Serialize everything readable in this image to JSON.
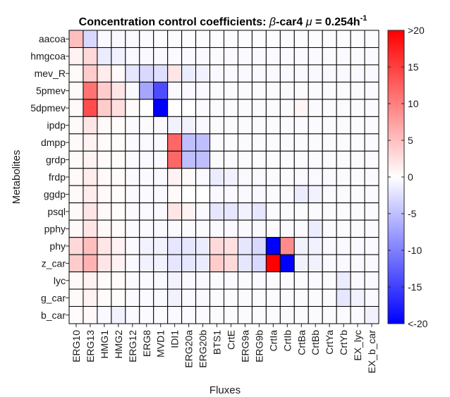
{
  "chart_data": {
    "type": "heatmap",
    "title": {
      "prefix": "Concentration control coefficients: ",
      "beta": "β",
      "mid": "-car4 ",
      "mu": "μ",
      "value": " = 0.254h",
      "exponent": "-1"
    },
    "xlabel": "Fluxes",
    "ylabel": "Metabolites",
    "x": [
      "ERG10",
      "ERG13",
      "HMG1",
      "HMG2",
      "ERG12",
      "ERG8",
      "MVD1",
      "IDI1",
      "ERG20a",
      "ERG20b",
      "BTS1",
      "CrtE",
      "ERG9a",
      "ERG9b",
      "CrtIa",
      "CrtIb",
      "CrtBa",
      "CrtBb",
      "CrtYa",
      "CrtYb",
      "EX_lyc",
      "EX_b_car"
    ],
    "y": [
      "aacoa",
      "hmgcoa",
      "mev_R",
      "5pmev",
      "5dpmev",
      "ipdp",
      "dmpp",
      "grdp",
      "frdp",
      "ggdp",
      "psql",
      "pphy",
      "phy",
      "z_car",
      "lyc",
      "g_car",
      "b_car"
    ],
    "values": [
      [
        5,
        -3,
        -0.5,
        -0.5,
        -0.5,
        -0.3,
        -0.2,
        -0.3,
        -0.2,
        -0.2,
        -0.2,
        -0.2,
        -0.2,
        -0.2,
        -0.2,
        -0.2,
        -0.2,
        -0.2,
        -0.2,
        -0.2,
        -0.2,
        -0.2
      ],
      [
        1,
        3,
        -1.5,
        -1,
        -0.5,
        -0.5,
        -0.5,
        -0.3,
        -0.3,
        -0.3,
        -0.3,
        -0.3,
        -0.3,
        -0.3,
        -0.3,
        -0.3,
        -0.3,
        -0.3,
        -0.3,
        -0.3,
        -0.3,
        -0.3
      ],
      [
        0.5,
        4,
        1.5,
        0.5,
        -2,
        -3,
        -2.5,
        2,
        -1.5,
        -1,
        -0.5,
        -0.5,
        -0.5,
        -0.5,
        -0.5,
        -0.5,
        -0.5,
        -0.5,
        -0.5,
        -0.5,
        -0.5,
        -0.5
      ],
      [
        0.5,
        11,
        4,
        2,
        -0.5,
        -7,
        -14,
        -0.5,
        -0.5,
        -0.5,
        -0.3,
        -0.3,
        -0.3,
        -0.3,
        -0.3,
        -0.3,
        -0.3,
        -0.3,
        -0.3,
        -0.3,
        -0.3,
        -0.3
      ],
      [
        0.5,
        14,
        4,
        2.5,
        0.3,
        0,
        -20,
        0,
        0,
        -0.3,
        -0.3,
        -0.3,
        -0.3,
        -0.3,
        -0.3,
        -0.3,
        0.8,
        -0.3,
        -0.3,
        -0.3,
        -0.3,
        -0.3
      ],
      [
        0.5,
        2,
        0.5,
        0.3,
        -0.3,
        -0.3,
        -0.5,
        -1,
        -1,
        -0.5,
        -0.3,
        -0.3,
        -0.3,
        -0.3,
        -0.3,
        -0.3,
        -0.3,
        -0.3,
        -0.3,
        -0.3,
        -0.3,
        -0.3
      ],
      [
        0.5,
        1,
        0.3,
        0.3,
        -0.3,
        -0.5,
        -0.5,
        12,
        -5,
        -5,
        -0.3,
        -0.3,
        -0.3,
        -0.3,
        -0.3,
        -0.3,
        -0.3,
        -0.3,
        -0.3,
        -0.3,
        -0.3,
        -0.3
      ],
      [
        0.5,
        1,
        0.3,
        0.3,
        -0.3,
        -0.5,
        -0.5,
        12,
        -5,
        -5,
        -0.3,
        -0.3,
        -0.3,
        -0.3,
        -0.3,
        -0.3,
        -0.3,
        -0.3,
        -0.3,
        -0.3,
        -0.3,
        -0.3
      ],
      [
        0.5,
        1.5,
        0.5,
        0.3,
        -0.3,
        -0.3,
        -0.5,
        1,
        0.5,
        -0.5,
        -1.5,
        -1,
        -0.5,
        -0.5,
        -0.3,
        -0.3,
        -0.5,
        -0.5,
        -0.3,
        -0.3,
        -0.3,
        -0.3
      ],
      [
        0.5,
        1.5,
        0.5,
        0.3,
        -0.3,
        -0.3,
        -0.5,
        0.5,
        0,
        0,
        -0.5,
        -0.5,
        -0.5,
        -0.5,
        -0.3,
        -0.3,
        -1.5,
        -1,
        -0.3,
        -0.3,
        -0.3,
        -0.3
      ],
      [
        0.5,
        2,
        0.5,
        0.3,
        -0.3,
        -0.5,
        -0.5,
        2,
        1,
        -0.5,
        -2,
        -2,
        -1,
        -2,
        -0.3,
        -0.3,
        -0.3,
        -0.3,
        -0.3,
        -0.3,
        -0.3,
        -0.3
      ],
      [
        0.5,
        2,
        0.5,
        0.3,
        -0.3,
        -0.3,
        -0.5,
        -0.5,
        -0.3,
        -0.3,
        -0.5,
        -0.5,
        -0.5,
        -0.5,
        -0.3,
        -0.3,
        -0.3,
        -1.5,
        -0.3,
        -0.3,
        -0.3,
        -0.3
      ],
      [
        3,
        5,
        2,
        1,
        -0.5,
        -1,
        -1,
        -2,
        -2,
        -1.5,
        3,
        2.5,
        -2,
        -3,
        -20,
        9,
        -1,
        -1,
        -0.5,
        -0.5,
        -0.5,
        -0.5
      ],
      [
        4,
        6,
        2,
        1,
        -0.5,
        -1,
        -1,
        -2,
        -2,
        -1.5,
        4,
        3,
        -2,
        -3,
        20,
        -20,
        -1,
        -1,
        -0.5,
        -0.5,
        -0.5,
        -0.5
      ],
      [
        0.5,
        1,
        0.3,
        0.3,
        -0.3,
        -0.3,
        -0.5,
        -1,
        -0.5,
        -0.5,
        -0.3,
        -0.3,
        -0.3,
        -0.3,
        -0.3,
        -0.3,
        -0.3,
        -0.3,
        -0.3,
        -1.5,
        -0.5,
        -0.5
      ],
      [
        0.5,
        1,
        0.3,
        0.3,
        -0.3,
        -0.3,
        -0.5,
        -1,
        -0.5,
        -0.5,
        -0.3,
        -0.3,
        -0.3,
        -0.3,
        -0.3,
        -0.3,
        -0.3,
        -0.3,
        -0.3,
        -2,
        -1,
        -0.5
      ],
      [
        0.3,
        0.5,
        -0.5,
        -1,
        -0.5,
        -0.3,
        -0.3,
        -0.5,
        -0.3,
        -0.3,
        -0.3,
        -0.3,
        -0.3,
        -0.3,
        -0.3,
        -0.3,
        -0.3,
        -0.3,
        -0.3,
        -0.3,
        -0.3,
        -1
      ]
    ],
    "clim": [
      -20,
      20
    ],
    "colorbar": {
      "ticks": [
        20,
        15,
        10,
        5,
        0,
        -5,
        -10,
        -15,
        -20
      ],
      "tick_labels": [
        ">20",
        "15",
        "10",
        "5",
        "0",
        "-5",
        "-10",
        "-15",
        "<-20"
      ]
    },
    "colormap": {
      "negative": "#0000ff",
      "zero": "#ffffff",
      "positive": "#ff0000"
    },
    "grid": true,
    "legend": "colorbar-right"
  }
}
